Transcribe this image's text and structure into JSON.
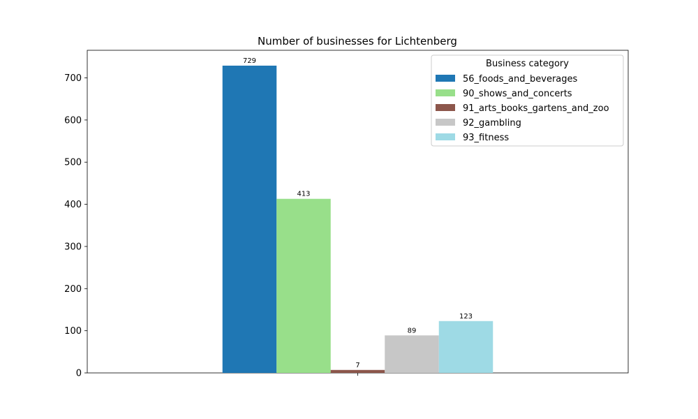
{
  "chart_data": {
    "type": "bar",
    "title": "Number of businesses for Lichtenberg",
    "xlabel": "",
    "ylabel": "",
    "categories": [
      ""
    ],
    "ylim": [
      0,
      765.45
    ],
    "yticks": [
      0,
      100,
      200,
      300,
      400,
      500,
      600,
      700
    ],
    "grid": false,
    "legend": {
      "title": "Business category",
      "placement": "top-right"
    },
    "series": [
      {
        "name": "56_foods_and_beverages",
        "values": [
          729
        ],
        "color": "#1f77b4"
      },
      {
        "name": "90_shows_and_concerts",
        "values": [
          413
        ],
        "color": "#98df8a"
      },
      {
        "name": "91_arts_books_gartens_and_zoo",
        "values": [
          7
        ],
        "color": "#8c564b"
      },
      {
        "name": "92_gambling",
        "values": [
          89
        ],
        "color": "#c7c7c7"
      },
      {
        "name": "93_fitness",
        "values": [
          123
        ],
        "color": "#9edae5"
      }
    ]
  }
}
